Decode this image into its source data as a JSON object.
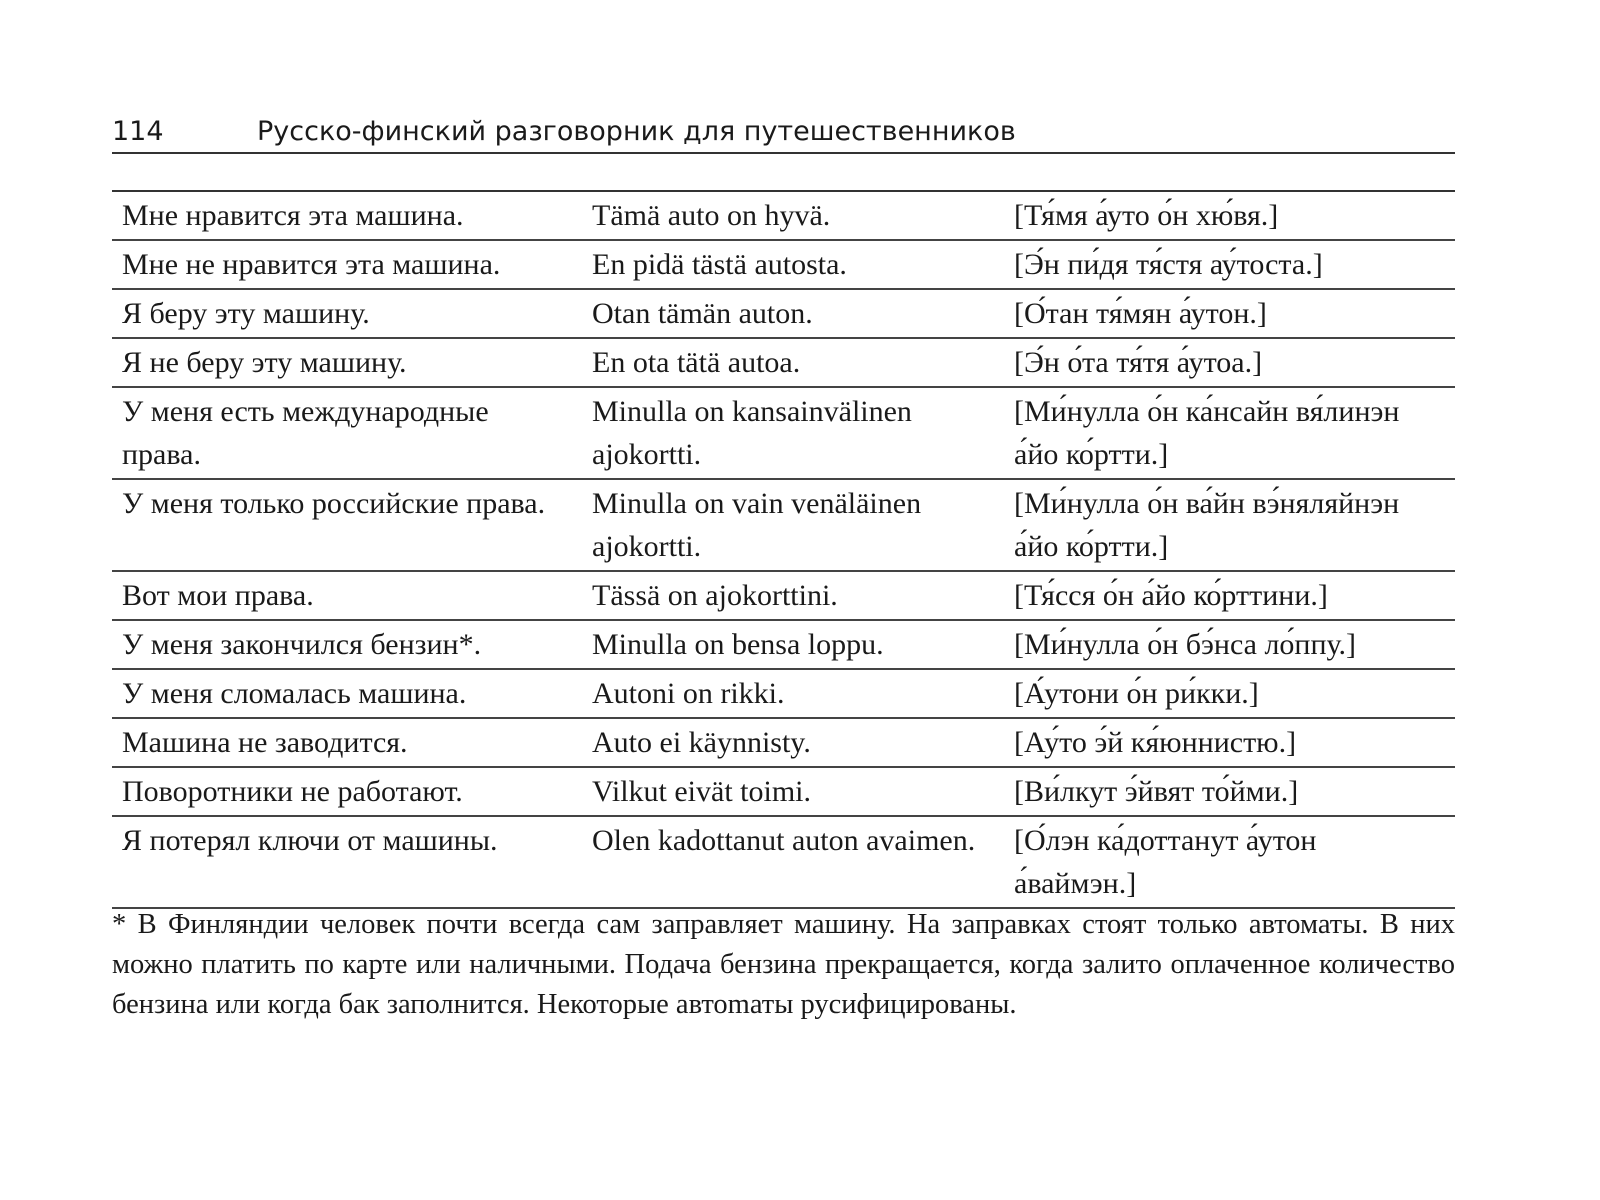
{
  "header": {
    "page_number": "114",
    "title": "Русско-финский разговорник для путешественников"
  },
  "rows": [
    [
      "Мне нравится эта машина.",
      "Tämä auto on hyvä.",
      "[Тя́мя а́уто о́н хю́вя.]"
    ],
    [
      "Мне не нравится эта машина.",
      "En pidä tästä autosta.",
      "[Э́н пи́дя тя́стя ау́тоста.]"
    ],
    [
      "Я беру эту машину.",
      "Otan tämän auton.",
      "[О́тан тя́мян а́утон.]"
    ],
    [
      "Я не беру эту машину.",
      "En ota tätä autoa.",
      "[Э́н о́та тя́тя а́утоа.]"
    ],
    [
      "У меня есть международные права.",
      "Minulla on kansainvälinen ajokortti.",
      "[Ми́нулла о́н ка́нсайн вя́линэн а́йо ко́ртти.]"
    ],
    [
      "У меня только российские права.",
      "Minulla on vain venäläinen ajokortti.",
      "[Ми́нулла о́н ва́йн вэ́няляйнэн а́йо ко́ртти.]"
    ],
    [
      "Вот мои права.",
      "Tässä on ajokorttini.",
      "[Тя́сся о́н а́йо ко́рттини.]"
    ],
    [
      "У меня закончился бензин*.",
      "Minulla on bensa loppu.",
      "[Ми́нулла о́н бэ́нса ло́ппу.]"
    ],
    [
      "У меня сломалась машина.",
      "Autoni on rikki.",
      "[А́утони о́н ри́кки.]"
    ],
    [
      "Машина не заводится.",
      "Auto ei käynnisty.",
      "[Ау́то э́й кя́юннистю.]"
    ],
    [
      "Поворотники не работают.",
      "Vilkut eivät toimi.",
      "[Ви́лкут э́йвят то́йми.]"
    ],
    [
      "Я потерял ключи от машины.",
      "Olen kadottanut auton avaimen.",
      "[О́лэн ка́доттанут а́утон а́ваймэн.]"
    ]
  ],
  "footnote": "* В Финляндии человек почти всегда сам заправляет машину. На заправках стоят только автоматы. В них можно платить по карте или наличными. Подача бензина прекращается, когда залито оплаченное количество бензина или когда бак заполнится. Некоторые авто­mаты русифицированы."
}
